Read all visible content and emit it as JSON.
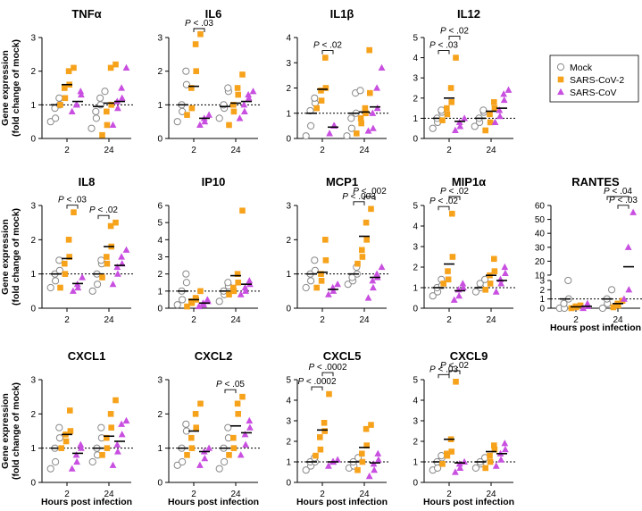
{
  "colors": {
    "mock": "#888888",
    "sars2": "#f7a21b",
    "sars": "#c84fe0",
    "axis": "#000000"
  },
  "legend": {
    "items": [
      {
        "label": "Mock",
        "key": "mock",
        "marker": "circle"
      },
      {
        "label": "SARS-CoV-2",
        "key": "sars2",
        "marker": "square"
      },
      {
        "label": "SARS-CoV",
        "key": "sars",
        "marker": "triangle"
      }
    ]
  },
  "labels": {
    "ylabel_line1": "Gene expression",
    "ylabel_line2": "(fold change of mock)",
    "xlabel": "Hours post infection"
  },
  "chart_data": [
    {
      "type": "scatter",
      "title": "TNFα",
      "categories": [
        "2",
        "24"
      ],
      "ylim": [
        0,
        3
      ],
      "yticks": [
        0,
        1,
        2,
        3
      ],
      "series": {
        "mock": [
          [
            0.5,
            0.6,
            0.9,
            1.0,
            1.2
          ],
          [
            0.3,
            0.6,
            0.8,
            1.0,
            1.2,
            1.4
          ]
        ],
        "sars2": [
          [
            1.0,
            1.2,
            1.5,
            1.6,
            2.0,
            2.1
          ],
          [
            0.1,
            0.4,
            0.8,
            1.0,
            2.1,
            2.2
          ]
        ],
        "sars": [
          [
            0.8,
            1.0,
            1.0,
            1.3,
            1.4
          ],
          [
            0.4,
            0.9,
            1.1,
            1.2,
            1.5,
            2.1
          ]
        ]
      },
      "means": {
        "mock": [
          1.0,
          0.95
        ],
        "sars2": [
          1.6,
          1.05
        ],
        "sars": [
          1.1,
          1.1
        ]
      },
      "pvals": []
    },
    {
      "type": "scatter",
      "title": "IL6",
      "categories": [
        "2",
        "24"
      ],
      "ylim": [
        0,
        3
      ],
      "yticks": [
        0,
        1,
        2,
        3
      ],
      "series": {
        "mock": [
          [
            0.5,
            0.8,
            1.0,
            1.6,
            2.0
          ],
          [
            0.6,
            0.9,
            1.0,
            1.4,
            1.5
          ]
        ],
        "sars2": [
          [
            0.7,
            0.9,
            1.5,
            2.0,
            2.8,
            3.1
          ],
          [
            0.4,
            0.8,
            1.0,
            1.3,
            1.5,
            1.9
          ]
        ],
        "sars": [
          [
            0.4,
            0.5,
            0.6,
            0.7
          ],
          [
            0.6,
            0.8,
            1.0,
            1.2,
            1.3,
            1.4
          ]
        ]
      },
      "means": {
        "mock": [
          1.0,
          0.95
        ],
        "sars2": [
          1.55,
          1.05
        ],
        "sars": [
          0.6,
          1.1
        ]
      },
      "pvals": [
        {
          "text": "P < .03",
          "from": "sars2",
          "to": "sars",
          "group": 0,
          "level": 0
        }
      ]
    },
    {
      "type": "scatter",
      "title": "IL1β",
      "categories": [
        "2",
        "24"
      ],
      "ylim": [
        0,
        4
      ],
      "yticks": [
        0,
        1,
        2,
        3,
        4
      ],
      "series": {
        "mock": [
          [
            0.1,
            0.5,
            1.1,
            1.4,
            1.6
          ],
          [
            0.1,
            0.4,
            0.8,
            1.0,
            1.8,
            1.9
          ]
        ],
        "sars2": [
          [
            1.2,
            1.5,
            1.9,
            2.0,
            3.2
          ],
          [
            0.2,
            0.6,
            0.8,
            1.0,
            1.2,
            1.8,
            3.5
          ]
        ],
        "sars": [
          [
            0.2,
            0.5,
            0.5
          ],
          [
            0.3,
            0.4,
            1.0,
            1.2,
            2.0,
            2.8
          ]
        ]
      },
      "means": {
        "mock": [
          1.0,
          1.0
        ],
        "sars2": [
          1.95,
          1.05
        ],
        "sars": [
          0.45,
          1.25
        ]
      },
      "pvals": [
        {
          "text": "P < .02",
          "from": "sars2",
          "to": "sars",
          "group": 0,
          "level": 0
        }
      ]
    },
    {
      "type": "scatter",
      "title": "IL12",
      "categories": [
        "2",
        "24"
      ],
      "ylim": [
        0,
        5
      ],
      "yticks": [
        0,
        1,
        2,
        3,
        4,
        5
      ],
      "series": {
        "mock": [
          [
            0.5,
            0.8,
            1.0,
            1.3,
            1.4
          ],
          [
            0.6,
            0.8,
            1.0,
            1.3,
            1.4
          ]
        ],
        "sars2": [
          [
            0.9,
            1.2,
            1.5,
            1.8,
            2.5,
            4.0
          ],
          [
            0.4,
            0.8,
            1.2,
            1.5,
            1.8
          ]
        ],
        "sars": [
          [
            0.4,
            0.6,
            0.8,
            1.0
          ],
          [
            0.8,
            1.1,
            1.4,
            1.9,
            2.2,
            2.4
          ]
        ]
      },
      "means": {
        "mock": [
          1.0,
          1.0
        ],
        "sars2": [
          2.0,
          1.35
        ],
        "sars": [
          0.85,
          1.5
        ]
      },
      "pvals": [
        {
          "text": "P < .03",
          "from": "mock",
          "to": "sars2",
          "group": 0,
          "level": 0
        },
        {
          "text": "P < .02",
          "from": "sars2",
          "to": "sars",
          "group": 0,
          "level": 1
        }
      ]
    },
    {
      "type": "scatter",
      "title": "IL8",
      "categories": [
        "2",
        "24"
      ],
      "ylim": [
        0,
        3
      ],
      "yticks": [
        0,
        1,
        2,
        3
      ],
      "series": {
        "mock": [
          [
            0.6,
            0.8,
            1.0,
            1.1,
            1.4
          ],
          [
            0.5,
            0.7,
            1.0,
            1.3,
            1.4
          ]
        ],
        "sars2": [
          [
            0.6,
            1.0,
            1.3,
            1.5,
            2.0,
            2.8
          ],
          [
            0.9,
            1.3,
            1.5,
            1.8,
            2.4,
            2.5
          ]
        ],
        "sars": [
          [
            0.5,
            0.6,
            0.7,
            0.9
          ],
          [
            0.7,
            1.0,
            1.2,
            1.3,
            1.5,
            1.7
          ]
        ]
      },
      "means": {
        "mock": [
          1.0,
          1.0
        ],
        "sars2": [
          1.45,
          1.8
        ],
        "sars": [
          0.72,
          1.25
        ]
      },
      "pvals": [
        {
          "text": "P < .03",
          "from": "sars2",
          "to": "sars",
          "group": 0,
          "level": 0
        },
        {
          "text": "P < .02",
          "from": "mock",
          "to": "sars2",
          "group": 1,
          "level": 0
        }
      ]
    },
    {
      "type": "scatter",
      "title": "IP10",
      "categories": [
        "2",
        "24"
      ],
      "ylim": [
        0,
        6
      ],
      "yticks": [
        0,
        1,
        2,
        3,
        4,
        5,
        6
      ],
      "series": {
        "mock": [
          [
            0.2,
            0.5,
            1.0,
            1.5,
            2.0
          ],
          [
            0.4,
            0.8,
            1.0,
            1.3,
            1.5
          ]
        ],
        "sars2": [
          [
            0.1,
            0.3,
            0.4,
            0.5,
            0.6,
            1.0
          ],
          [
            0.8,
            1.0,
            1.2,
            1.5,
            2.0,
            5.7
          ]
        ],
        "sars": [
          [
            0.1,
            0.2,
            0.3,
            0.4,
            0.5
          ],
          [
            0.8,
            1.0,
            1.2,
            1.4,
            1.6
          ]
        ]
      },
      "means": {
        "mock": [
          1.0,
          1.0
        ],
        "sars2": [
          0.5,
          1.9
        ],
        "sars": [
          0.3,
          1.4
        ]
      },
      "pvals": []
    },
    {
      "type": "scatter",
      "title": "MCP1",
      "categories": [
        "2",
        "24"
      ],
      "ylim": [
        0,
        3
      ],
      "yticks": [
        0,
        1,
        2,
        3
      ],
      "series": {
        "mock": [
          [
            0.6,
            0.8,
            1.0,
            1.1,
            1.4
          ],
          [
            0.7,
            0.8,
            0.9,
            1.0,
            1.2
          ]
        ],
        "sars2": [
          [
            0.6,
            0.8,
            1.0,
            1.4,
            2.0
          ],
          [
            1.3,
            1.5,
            1.7,
            2.0,
            2.5,
            2.9
          ]
        ],
        "sars": [
          [
            0.4,
            0.5,
            0.6,
            0.7
          ],
          [
            0.3,
            0.6,
            0.8,
            0.9,
            1.0,
            1.2
          ]
        ]
      },
      "means": {
        "mock": [
          1.0,
          1.0
        ],
        "sars2": [
          1.05,
          2.1
        ],
        "sars": [
          0.55,
          0.9
        ]
      },
      "pvals": [
        {
          "text": "P < .003",
          "from": "mock",
          "to": "sars2",
          "group": 1,
          "level": 0
        },
        {
          "text": "P < .002",
          "from": "sars2",
          "to": "sars",
          "group": 1,
          "level": 1
        }
      ]
    },
    {
      "type": "scatter",
      "title": "MIP1α",
      "categories": [
        "2",
        "24"
      ],
      "ylim": [
        0,
        5
      ],
      "yticks": [
        0,
        1,
        2,
        3,
        4,
        5
      ],
      "series": {
        "mock": [
          [
            0.6,
            0.8,
            1.0,
            1.1,
            1.4
          ],
          [
            0.8,
            1.0,
            1.2,
            1.4
          ]
        ],
        "sars2": [
          [
            1.2,
            1.4,
            1.8,
            2.5,
            4.6
          ],
          [
            0.9,
            1.2,
            1.6,
            1.8,
            2.4
          ]
        ],
        "sars": [
          [
            0.4,
            0.6,
            0.9,
            1.0,
            1.2
          ],
          [
            0.8,
            1.2,
            1.4,
            1.7,
            2.0
          ]
        ]
      },
      "means": {
        "mock": [
          1.0,
          1.0
        ],
        "sars2": [
          2.15,
          1.6
        ],
        "sars": [
          0.85,
          1.35
        ]
      },
      "pvals": [
        {
          "text": "P < .02",
          "from": "mock",
          "to": "sars2",
          "group": 0,
          "level": 0
        },
        {
          "text": "P < .02",
          "from": "sars2",
          "to": "sars",
          "group": 0,
          "level": 1
        }
      ]
    },
    {
      "type": "scatter",
      "title": "RANTES",
      "categories": [
        "2",
        "24"
      ],
      "ylim": [
        0,
        60
      ],
      "yticks": [
        0,
        1,
        2,
        3,
        10,
        20,
        30,
        40,
        50,
        60
      ],
      "broken_axis": {
        "lower": [
          0,
          3
        ],
        "upper": [
          10,
          60
        ]
      },
      "series": {
        "mock": [
          [
            0.0,
            0.0,
            0.5,
            1.0,
            3.0
          ],
          [
            0.0,
            0.5,
            1.0,
            2.0
          ]
        ],
        "sars2": [
          [
            0.0,
            0.1,
            0.2,
            0.3
          ],
          [
            0.1,
            0.3,
            0.5,
            0.8
          ]
        ],
        "sars": [
          [
            0.0,
            0.2,
            0.5
          ],
          [
            1.0,
            2.0,
            30.0,
            55.0
          ]
        ]
      },
      "means": {
        "mock": [
          1.0,
          1.0
        ],
        "sars2": [
          0.15,
          0.5
        ],
        "sars": [
          0.2,
          16.0
        ]
      },
      "pvals": [
        {
          "text": "P < .03",
          "from": "sars2",
          "to": "sars",
          "group": 1,
          "level": 0
        },
        {
          "text": "P < .04",
          "from": "mock",
          "to": "sars",
          "group": 1,
          "level": 1
        }
      ]
    },
    {
      "type": "scatter",
      "title": "CXCL1",
      "categories": [
        "2",
        "24"
      ],
      "ylim": [
        0,
        3
      ],
      "yticks": [
        0,
        1,
        2,
        3
      ],
      "series": {
        "mock": [
          [
            0.4,
            0.6,
            1.0,
            1.3,
            1.6
          ],
          [
            0.6,
            0.8,
            1.0,
            1.3,
            1.6
          ]
        ],
        "sars2": [
          [
            1.0,
            1.2,
            1.4,
            1.5,
            2.1
          ],
          [
            0.8,
            1.0,
            1.3,
            1.6,
            2.0,
            2.4
          ]
        ],
        "sars": [
          [
            0.4,
            0.6,
            0.8,
            1.0,
            1.1
          ],
          [
            0.5,
            0.9,
            1.1,
            1.4,
            1.7,
            1.8
          ]
        ]
      },
      "means": {
        "mock": [
          1.0,
          1.0
        ],
        "sars2": [
          1.4,
          1.35
        ],
        "sars": [
          0.85,
          1.2
        ]
      },
      "pvals": []
    },
    {
      "type": "scatter",
      "title": "CXCL2",
      "categories": [
        "2",
        "24"
      ],
      "ylim": [
        0,
        3
      ],
      "yticks": [
        0,
        1,
        2,
        3
      ],
      "series": {
        "mock": [
          [
            0.5,
            0.6,
            1.0,
            1.5,
            1.7
          ],
          [
            0.4,
            0.6,
            1.0,
            1.3,
            1.6
          ]
        ],
        "sars2": [
          [
            0.8,
            1.0,
            1.3,
            1.6,
            2.0,
            2.3
          ],
          [
            0.8,
            1.0,
            1.3,
            2.0,
            2.3,
            2.5
          ]
        ],
        "sars": [
          [
            0.5,
            0.7,
            0.9,
            1.0
          ],
          [
            0.8,
            1.1,
            1.4,
            1.6,
            1.8
          ]
        ]
      },
      "means": {
        "mock": [
          1.0,
          1.0
        ],
        "sars2": [
          1.5,
          1.65
        ],
        "sars": [
          0.9,
          1.45
        ]
      },
      "pvals": [
        {
          "text": "P < .05",
          "from": "mock",
          "to": "sars2",
          "group": 1,
          "level": 0
        }
      ]
    },
    {
      "type": "scatter",
      "title": "CXCL5",
      "categories": [
        "2",
        "24"
      ],
      "ylim": [
        0,
        5
      ],
      "yticks": [
        0,
        1,
        2,
        3,
        4,
        5
      ],
      "series": {
        "mock": [
          [
            0.6,
            0.8,
            1.0,
            1.0,
            1.2
          ],
          [
            0.7,
            0.8,
            1.0,
            1.2
          ]
        ],
        "sars2": [
          [
            1.3,
            1.6,
            2.2,
            2.5,
            2.9,
            4.3
          ],
          [
            0.6,
            1.0,
            1.4,
            1.8,
            2.6,
            2.8
          ]
        ],
        "sars": [
          [
            0.8,
            1.0,
            1.0,
            1.1
          ],
          [
            0.3,
            0.6,
            0.9,
            1.1,
            1.4
          ]
        ]
      },
      "means": {
        "mock": [
          1.0,
          1.0
        ],
        "sars2": [
          2.55,
          1.7
        ],
        "sars": [
          1.0,
          0.95
        ]
      },
      "pvals": [
        {
          "text": "P < .0002",
          "from": "mock",
          "to": "sars2",
          "group": 0,
          "level": 0
        },
        {
          "text": "P < .0002",
          "from": "sars2",
          "to": "sars",
          "group": 0,
          "level": 1
        }
      ]
    },
    {
      "type": "scatter",
      "title": "CXCL9",
      "categories": [
        "2",
        "24"
      ],
      "ylim": [
        0,
        5
      ],
      "yticks": [
        0,
        1,
        2,
        3,
        4,
        5
      ],
      "series": {
        "mock": [
          [
            0.6,
            0.7,
            1.0,
            1.2,
            1.3
          ],
          [
            0.7,
            0.9,
            1.0,
            1.2
          ]
        ],
        "sars2": [
          [
            0.9,
            1.3,
            1.4,
            1.5,
            2.1,
            4.9
          ],
          [
            0.7,
            1.0,
            1.3,
            1.6,
            1.8
          ]
        ],
        "sars": [
          [
            0.5,
            0.7,
            0.9,
            1.0
          ],
          [
            0.8,
            1.1,
            1.4,
            1.6,
            1.9
          ]
        ]
      },
      "means": {
        "mock": [
          1.0,
          1.0
        ],
        "sars2": [
          2.1,
          1.5
        ],
        "sars": [
          0.95,
          1.4
        ]
      },
      "pvals": [
        {
          "text": "P < .03",
          "from": "mock",
          "to": "sars2",
          "group": 0,
          "level": 0
        },
        {
          "text": "P < .02",
          "from": "sars2",
          "to": "sars",
          "group": 0,
          "level": 1
        }
      ]
    }
  ]
}
